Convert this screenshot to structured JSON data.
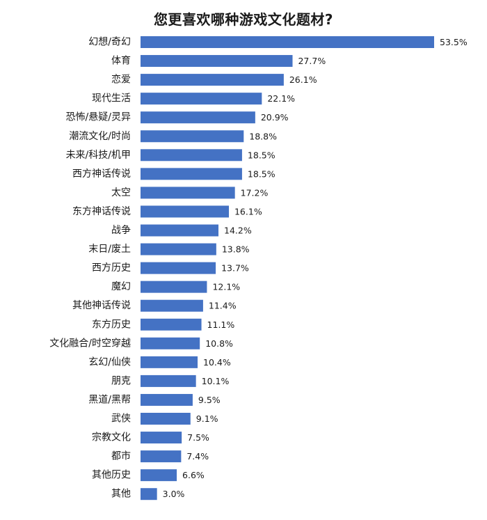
{
  "chart_data": {
    "type": "bar",
    "orientation": "horizontal",
    "title": "您更喜欢哪种游戏文化题材?",
    "xlabel": "",
    "ylabel": "",
    "unit": "%",
    "bar_color": "#4472c4",
    "grid": false,
    "legend": "none",
    "xlim": [
      0,
      53.5
    ],
    "categories": [
      "幻想/奇幻",
      "体育",
      "恋爱",
      "现代生活",
      "恐怖/悬疑/灵异",
      "潮流文化/时尚",
      "未来/科技/机甲",
      "西方神话传说",
      "太空",
      "东方神话传说",
      "战争",
      "末日/废土",
      "西方历史",
      "魔幻",
      "其他神话传说",
      "东方历史",
      "文化融合/时空穿越",
      "玄幻/仙侠",
      "朋克",
      "黑道/黑帮",
      "武侠",
      "宗教文化",
      "都市",
      "其他历史",
      "其他"
    ],
    "values": [
      53.5,
      27.7,
      26.1,
      22.1,
      20.9,
      18.8,
      18.5,
      18.5,
      17.2,
      16.1,
      14.2,
      13.8,
      13.7,
      12.1,
      11.4,
      11.1,
      10.8,
      10.4,
      10.1,
      9.5,
      9.1,
      7.5,
      7.4,
      6.6,
      3.0
    ],
    "value_labels": [
      "53.5%",
      "27.7%",
      "26.1%",
      "22.1%",
      "20.9%",
      "18.8%",
      "18.5%",
      "18.5%",
      "17.2%",
      "16.1%",
      "14.2%",
      "13.8%",
      "13.7%",
      "12.1%",
      "11.4%",
      "11.1%",
      "10.8%",
      "10.4%",
      "10.1%",
      "9.5%",
      "9.1%",
      "7.5%",
      "7.4%",
      "6.6%",
      "3.0%"
    ]
  }
}
